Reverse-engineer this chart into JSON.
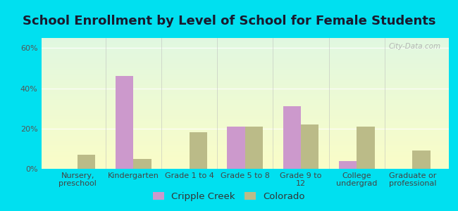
{
  "title": "School Enrollment by Level of School for Female Students",
  "categories": [
    "Nursery,\npreschool",
    "Kindergarten",
    "Grade 1 to 4",
    "Grade 5 to 8",
    "Grade 9 to\n12",
    "College\nundergrad",
    "Graduate or\nprofessional"
  ],
  "cripple_creek": [
    0,
    46,
    0,
    21,
    31,
    4,
    0
  ],
  "colorado": [
    7,
    5,
    18,
    21,
    22,
    21,
    9
  ],
  "bar_color_cc": "#cc99cc",
  "bar_color_co": "#bbbb88",
  "legend_cc": "Cripple Creek",
  "legend_co": "Colorado",
  "ylim": [
    0,
    65
  ],
  "yticks": [
    0,
    20,
    40,
    60
  ],
  "ytick_labels": [
    "0%",
    "20%",
    "40%",
    "60%"
  ],
  "bg_outer": "#00e0f0",
  "title_fontsize": 13,
  "tick_fontsize": 8,
  "legend_fontsize": 9.5,
  "bar_width": 0.32
}
